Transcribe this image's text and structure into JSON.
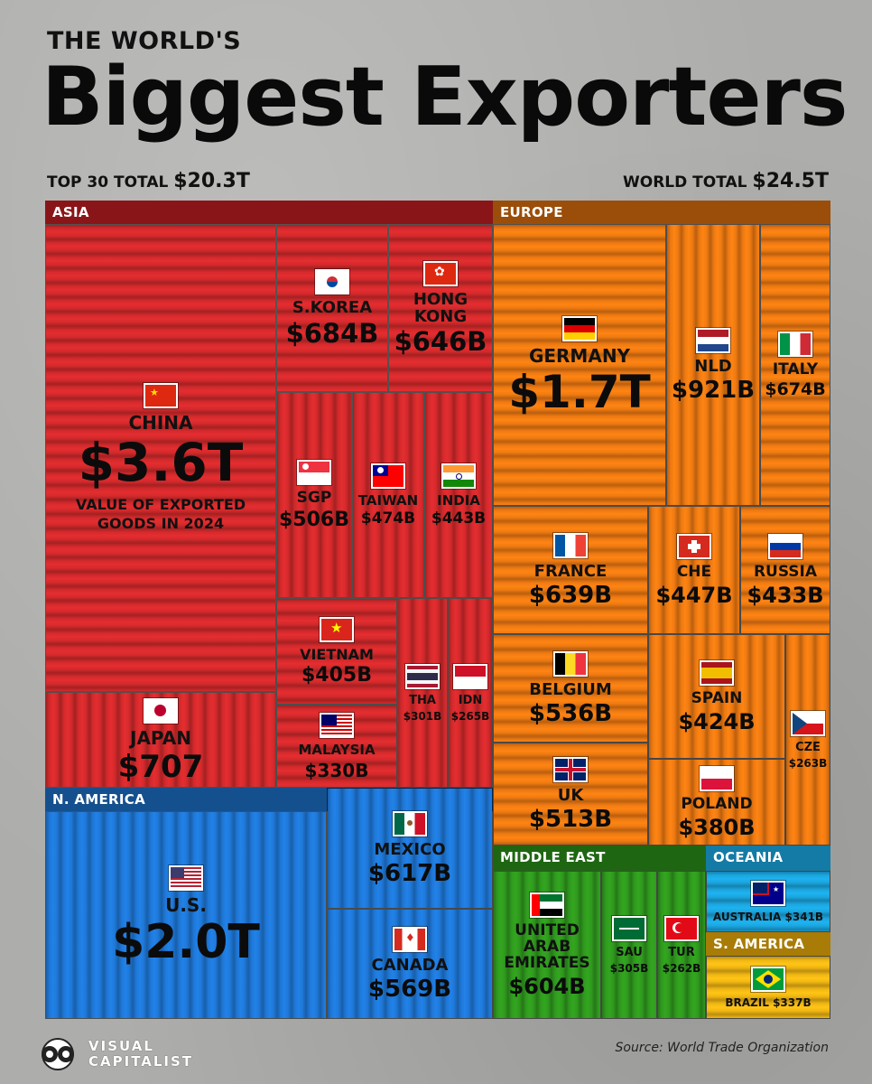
{
  "header": {
    "kicker": "THE WORLD'S",
    "title": "Biggest Exporters",
    "top30_label": "TOP 30 TOTAL",
    "top30_value": "$20.3T",
    "world_label": "WORLD TOTAL",
    "world_value": "$24.5T"
  },
  "colors": {
    "asia": "#d42a2c",
    "europe": "#ee7a12",
    "n_america": "#1f78d8",
    "middle_east": "#2f9a1e",
    "oceania": "#1ba6df",
    "s_america": "#f0b613"
  },
  "chart_data": {
    "type": "treemap",
    "title": "Biggest Exporters",
    "subtitle": "THE WORLD'S",
    "unit": "USD",
    "top30_total": "$20.3T",
    "world_total": "$24.5T",
    "regions": [
      {
        "name": "ASIA",
        "items": [
          {
            "label": "CHINA",
            "value": "$3.6T",
            "note": "VALUE OF EXPORTED GOODS IN 2024"
          },
          {
            "label": "JAPAN",
            "value": "$707"
          },
          {
            "label": "S.KOREA",
            "value": "$684B"
          },
          {
            "label": "HONG KONG",
            "value": "$646B"
          },
          {
            "label": "SGP",
            "value": "$506B"
          },
          {
            "label": "TAIWAN",
            "value": "$474B"
          },
          {
            "label": "INDIA",
            "value": "$443B"
          },
          {
            "label": "VIETNAM",
            "value": "$405B"
          },
          {
            "label": "MALAYSIA",
            "value": "$330B"
          },
          {
            "label": "THA",
            "value": "$301B"
          },
          {
            "label": "IDN",
            "value": "$265B"
          }
        ]
      },
      {
        "name": "EUROPE",
        "items": [
          {
            "label": "GERMANY",
            "value": "$1.7T"
          },
          {
            "label": "NLD",
            "value": "$921B"
          },
          {
            "label": "ITALY",
            "value": "$674B"
          },
          {
            "label": "FRANCE",
            "value": "$639B"
          },
          {
            "label": "CHE",
            "value": "$447B"
          },
          {
            "label": "RUSSIA",
            "value": "$433B"
          },
          {
            "label": "BELGIUM",
            "value": "$536B"
          },
          {
            "label": "SPAIN",
            "value": "$424B"
          },
          {
            "label": "CZE",
            "value": "$263B"
          },
          {
            "label": "UK",
            "value": "$513B"
          },
          {
            "label": "POLAND",
            "value": "$380B"
          }
        ]
      },
      {
        "name": "N. AMERICA",
        "items": [
          {
            "label": "U.S.",
            "value": "$2.0T"
          },
          {
            "label": "MEXICO",
            "value": "$617B"
          },
          {
            "label": "CANADA",
            "value": "$569B"
          }
        ]
      },
      {
        "name": "MIDDLE EAST",
        "items": [
          {
            "label": "UNITED ARAB EMIRATES",
            "value": "$604B"
          },
          {
            "label": "SAU",
            "value": "$305B"
          },
          {
            "label": "TUR",
            "value": "$262B"
          }
        ]
      },
      {
        "name": "OCEANIA",
        "items": [
          {
            "label": "AUSTRALIA",
            "value": "$341B"
          }
        ]
      },
      {
        "name": "S. AMERICA",
        "items": [
          {
            "label": "BRAZIL",
            "value": "$337B"
          }
        ]
      }
    ]
  },
  "footer": {
    "logo_line1": "VISUAL",
    "logo_line2": "CAPITALIST",
    "source": "Source: World Trade Organization"
  }
}
